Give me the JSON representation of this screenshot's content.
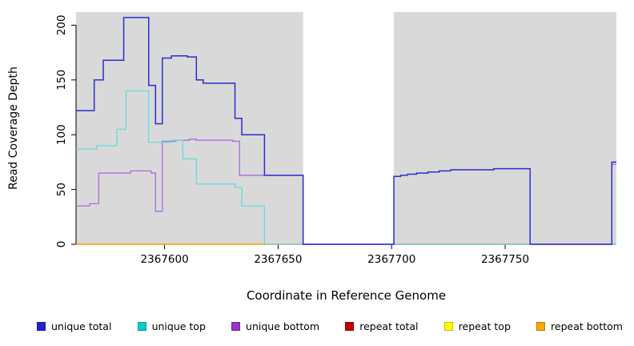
{
  "chart_data": {
    "type": "line",
    "title": "",
    "xlabel": "Coordinate in Reference Genome",
    "ylabel": "Read Coverage Depth",
    "xlim": [
      2367561,
      2367799
    ],
    "ylim": [
      0,
      212
    ],
    "xticks": [
      2367600,
      2367650,
      2367700,
      2367750
    ],
    "yticks": [
      0,
      50,
      100,
      150,
      200
    ],
    "grid": false,
    "legend_position": "bottom",
    "plot_background_color": "#D9D9D9",
    "gray_background_regions_x": [
      [
        2367561,
        2367661
      ],
      [
        2367701,
        2367799
      ]
    ],
    "white_gap_region_x": [
      2367661,
      2367701
    ],
    "series": [
      {
        "name": "repeat total",
        "color": "#C00000",
        "width": 1.3,
        "points": [
          [
            2367561,
            0
          ],
          [
            2367799,
            0
          ]
        ]
      },
      {
        "name": "repeat top",
        "color": "#FFFF00",
        "width": 1.3,
        "points": [
          [
            2367561,
            0
          ],
          [
            2367799,
            0
          ]
        ]
      },
      {
        "name": "repeat bottom",
        "color": "#FFA500",
        "width": 1.3,
        "points": [
          [
            2367561,
            0
          ],
          [
            2367701,
            0
          ]
        ]
      },
      {
        "name": "unique bottom",
        "color": "#A46EDC",
        "width": 1.3,
        "points": [
          [
            2367561,
            35
          ],
          [
            2367567,
            37
          ],
          [
            2367571,
            65
          ],
          [
            2367585,
            67
          ],
          [
            2367594,
            65
          ],
          [
            2367596,
            30
          ],
          [
            2367599,
            94
          ],
          [
            2367605,
            95
          ],
          [
            2367611,
            96
          ],
          [
            2367614,
            95
          ],
          [
            2367630,
            94
          ],
          [
            2367633,
            63
          ],
          [
            2367661,
            0
          ],
          [
            2367797,
            73
          ],
          [
            2367799,
            73
          ]
        ]
      },
      {
        "name": "unique top",
        "color": "#63DBDB",
        "width": 1.3,
        "points": [
          [
            2367561,
            87
          ],
          [
            2367570,
            90
          ],
          [
            2367579,
            105
          ],
          [
            2367583,
            140
          ],
          [
            2367593,
            93
          ],
          [
            2367603,
            95
          ],
          [
            2367608,
            78
          ],
          [
            2367614,
            55
          ],
          [
            2367631,
            52
          ],
          [
            2367634,
            35
          ],
          [
            2367644,
            0
          ],
          [
            2367799,
            0
          ]
        ]
      },
      {
        "name": "unique total",
        "color": "#2C2CD0",
        "width": 1.5,
        "points": [
          [
            2367561,
            122
          ],
          [
            2367569,
            150
          ],
          [
            2367573,
            168
          ],
          [
            2367582,
            207
          ],
          [
            2367593,
            145
          ],
          [
            2367596,
            110
          ],
          [
            2367599,
            170
          ],
          [
            2367603,
            172
          ],
          [
            2367610,
            171
          ],
          [
            2367614,
            150
          ],
          [
            2367617,
            147
          ],
          [
            2367631,
            115
          ],
          [
            2367634,
            100
          ],
          [
            2367644,
            63
          ],
          [
            2367661,
            0
          ],
          [
            2367701,
            62
          ],
          [
            2367704,
            63
          ],
          [
            2367707,
            64
          ],
          [
            2367711,
            65
          ],
          [
            2367716,
            66
          ],
          [
            2367721,
            67
          ],
          [
            2367726,
            68
          ],
          [
            2367745,
            69
          ],
          [
            2367761,
            0
          ],
          [
            2367797,
            75
          ],
          [
            2367799,
            75
          ]
        ]
      }
    ]
  },
  "legend": {
    "items": [
      {
        "label": "unique total",
        "color": "#2222CC"
      },
      {
        "label": "unique top",
        "color": "#00CDCD"
      },
      {
        "label": "unique bottom",
        "color": "#9932CC"
      },
      {
        "label": "repeat total",
        "color": "#C00000"
      },
      {
        "label": "repeat top",
        "color": "#FFFF00"
      },
      {
        "label": "repeat bottom",
        "color": "#FFA500"
      }
    ]
  }
}
